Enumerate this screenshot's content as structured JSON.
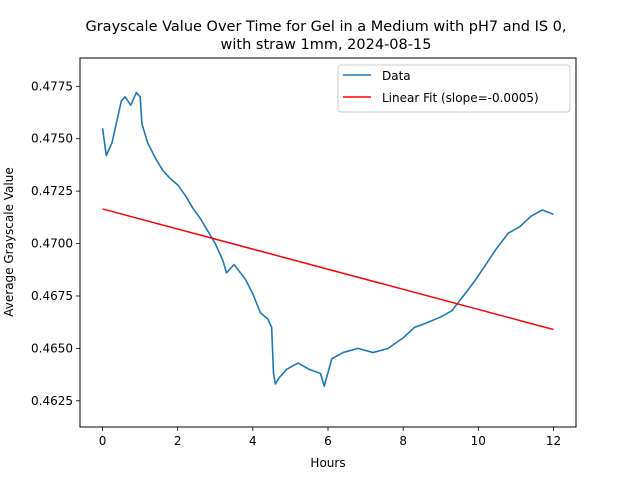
{
  "chart_data": {
    "type": "line",
    "title_line1": "Grayscale Value Over Time for Gel in a Medium with pH7 and IS 0,",
    "title_line2": "with straw 1mm, 2024-08-15",
    "xlabel": "Hours",
    "ylabel": "Average Grayscale Value",
    "xlim": [
      -0.6,
      12.6
    ],
    "ylim": [
      0.46125,
      0.47885
    ],
    "x_ticks": [
      0,
      2,
      4,
      6,
      8,
      10,
      12
    ],
    "x_tick_labels": [
      "0",
      "2",
      "4",
      "6",
      "8",
      "10",
      "12"
    ],
    "y_ticks": [
      0.4625,
      0.465,
      0.4675,
      0.47,
      0.4725,
      0.475,
      0.4775
    ],
    "y_tick_labels": [
      "0.4625",
      "0.4650",
      "0.4675",
      "0.4700",
      "0.4725",
      "0.4750",
      "0.4775"
    ],
    "grid": false,
    "legend_position": "top-right",
    "series": [
      {
        "name": "Data",
        "color": "#1f77b4",
        "x": [
          0,
          0.1,
          0.25,
          0.4,
          0.5,
          0.6,
          0.75,
          0.9,
          1.0,
          1.05,
          1.2,
          1.4,
          1.6,
          1.8,
          2.0,
          2.2,
          2.4,
          2.6,
          2.8,
          3.0,
          3.2,
          3.3,
          3.5,
          3.8,
          4.0,
          4.2,
          4.4,
          4.5,
          4.55,
          4.6,
          4.7,
          4.9,
          5.2,
          5.5,
          5.8,
          5.9,
          6.1,
          6.4,
          6.8,
          7.2,
          7.6,
          8.0,
          8.3,
          8.6,
          9.0,
          9.3,
          9.6,
          9.9,
          10.2,
          10.5,
          10.8,
          11.1,
          11.4,
          11.7,
          12.0
        ],
        "y": [
          0.4755,
          0.4742,
          0.4748,
          0.476,
          0.4768,
          0.477,
          0.4766,
          0.4772,
          0.477,
          0.4757,
          0.4748,
          0.4741,
          0.4735,
          0.4731,
          0.4728,
          0.4723,
          0.4717,
          0.4712,
          0.4706,
          0.47,
          0.4692,
          0.4686,
          0.469,
          0.4683,
          0.4676,
          0.4667,
          0.4664,
          0.466,
          0.4638,
          0.4633,
          0.4636,
          0.464,
          0.4643,
          0.464,
          0.4638,
          0.4632,
          0.4645,
          0.4648,
          0.465,
          0.4648,
          0.465,
          0.4655,
          0.466,
          0.4662,
          0.4665,
          0.4668,
          0.4675,
          0.4682,
          0.469,
          0.4698,
          0.4705,
          0.4708,
          0.4713,
          0.4716,
          0.4714
        ]
      },
      {
        "name": "Linear Fit (slope=-0.0005)",
        "color": "#ff0000",
        "x": [
          0,
          12
        ],
        "y": [
          0.47165,
          0.4659
        ]
      }
    ]
  }
}
